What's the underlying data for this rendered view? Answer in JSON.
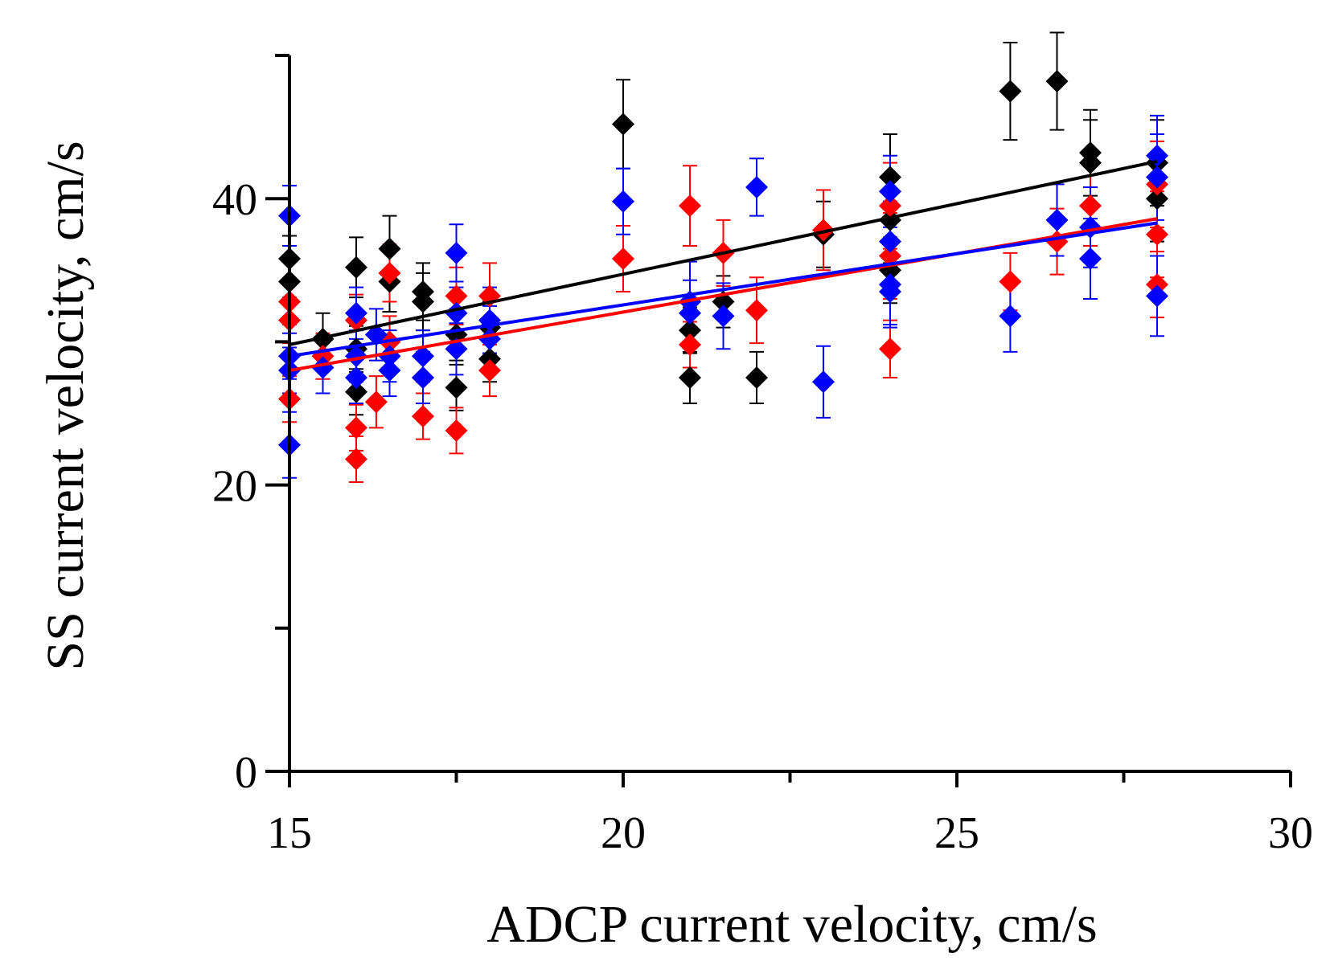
{
  "chart_data": {
    "type": "scatter",
    "xlabel": "ADCP current velocity, cm/s",
    "ylabel": "SS current velocity, cm/s",
    "xlim": [
      15,
      30
    ],
    "ylim": [
      0,
      50
    ],
    "x_ticks": [
      15,
      20,
      25,
      30
    ],
    "x_minor_ticks": [
      17.5,
      22.5,
      27.5
    ],
    "y_ticks": [
      0,
      20,
      40
    ],
    "y_minor_ticks": [
      10,
      30,
      50
    ],
    "marker": "diamond",
    "grid": false,
    "series": [
      {
        "color": "#000000",
        "fit": [
          [
            15,
            29.8
          ],
          [
            28,
            42.6
          ]
        ],
        "points": [
          [
            15,
            35.8,
            1.6
          ],
          [
            15,
            34.2,
            1.6
          ],
          [
            15.5,
            30.2,
            1.8
          ],
          [
            16,
            35.2,
            2.1
          ],
          [
            16,
            29.5,
            1.6
          ],
          [
            16,
            26.5,
            1.6
          ],
          [
            16.5,
            36.5,
            2.3
          ],
          [
            16.5,
            34.2,
            2.1
          ],
          [
            17,
            33.5,
            2.0
          ],
          [
            17,
            32.8,
            2.0
          ],
          [
            17.5,
            26.8,
            1.6
          ],
          [
            17.5,
            30.5,
            1.8
          ],
          [
            18,
            28.8,
            1.6
          ],
          [
            18,
            31.0,
            1.8
          ],
          [
            20,
            45.2,
            3.1
          ],
          [
            21,
            30.8,
            1.6
          ],
          [
            21,
            27.5,
            1.8
          ],
          [
            21.5,
            32.8,
            1.8
          ],
          [
            22,
            27.5,
            1.8
          ],
          [
            23,
            37.5,
            2.3
          ],
          [
            24,
            41.5,
            3.0
          ],
          [
            24,
            38.5,
            3.0
          ],
          [
            24,
            35.0,
            2.3
          ],
          [
            25.8,
            47.5,
            3.4
          ],
          [
            26.5,
            48.2,
            3.4
          ],
          [
            27,
            43.2,
            3.0
          ],
          [
            27,
            42.5,
            3.0
          ],
          [
            28,
            42.5,
            3.0
          ],
          [
            28,
            40.0,
            3.0
          ]
        ]
      },
      {
        "color": "#ff0000",
        "fit": [
          [
            15,
            28.0
          ],
          [
            28,
            38.6
          ]
        ],
        "points": [
          [
            15,
            32.8,
            1.6
          ],
          [
            15,
            31.5,
            1.6
          ],
          [
            15,
            26.0,
            1.6
          ],
          [
            15.5,
            29.0,
            1.6
          ],
          [
            16,
            31.5,
            1.8
          ],
          [
            16,
            24.0,
            1.6
          ],
          [
            16,
            21.8,
            1.6
          ],
          [
            16.3,
            25.8,
            1.8
          ],
          [
            16.5,
            34.8,
            2.0
          ],
          [
            16.5,
            30.0,
            1.8
          ],
          [
            17,
            27.5,
            1.8
          ],
          [
            17,
            24.8,
            1.6
          ],
          [
            17.5,
            33.2,
            2.0
          ],
          [
            17.5,
            23.8,
            1.6
          ],
          [
            18,
            33.2,
            2.3
          ],
          [
            18,
            28.0,
            1.8
          ],
          [
            20,
            35.8,
            2.3
          ],
          [
            21,
            39.5,
            2.8
          ],
          [
            21,
            29.8,
            1.6
          ],
          [
            21.5,
            36.2,
            2.3
          ],
          [
            22,
            32.2,
            2.3
          ],
          [
            23,
            37.8,
            2.8
          ],
          [
            24,
            39.5,
            3.0
          ],
          [
            24,
            36.0,
            3.0
          ],
          [
            24,
            29.5,
            2.0
          ],
          [
            25.8,
            34.2,
            2.0
          ],
          [
            26.5,
            37.0,
            2.3
          ],
          [
            27,
            39.5,
            2.8
          ],
          [
            28,
            41.0,
            3.0
          ],
          [
            28,
            37.5,
            3.0
          ],
          [
            28,
            34.0,
            2.3
          ]
        ]
      },
      {
        "color": "#0000ff",
        "fit": [
          [
            15,
            29.0
          ],
          [
            28,
            38.3
          ]
        ],
        "points": [
          [
            15,
            38.8,
            2.1
          ],
          [
            15,
            29.0,
            1.6
          ],
          [
            15,
            28.0,
            1.6
          ],
          [
            15,
            22.8,
            2.3
          ],
          [
            15.5,
            28.2,
            1.8
          ],
          [
            16,
            32.0,
            1.8
          ],
          [
            16,
            29.0,
            1.8
          ],
          [
            16,
            27.5,
            1.8
          ],
          [
            16.3,
            30.5,
            1.8
          ],
          [
            16.5,
            29.0,
            1.8
          ],
          [
            16.5,
            28.0,
            1.8
          ],
          [
            17,
            29.0,
            1.8
          ],
          [
            17,
            27.5,
            1.8
          ],
          [
            17.5,
            36.2,
            2.0
          ],
          [
            17.5,
            32.0,
            1.8
          ],
          [
            17.5,
            29.5,
            1.8
          ],
          [
            18,
            31.5,
            2.3
          ],
          [
            18,
            30.2,
            2.3
          ],
          [
            20,
            39.8,
            2.3
          ],
          [
            21,
            32.8,
            2.8
          ],
          [
            21,
            32.0,
            2.3
          ],
          [
            21.5,
            31.8,
            2.3
          ],
          [
            22,
            40.8,
            2.0
          ],
          [
            23,
            27.2,
            2.5
          ],
          [
            24,
            40.5,
            2.5
          ],
          [
            24,
            37.0,
            2.8
          ],
          [
            24,
            34.0,
            2.8
          ],
          [
            24,
            33.5,
            2.5
          ],
          [
            25.8,
            31.8,
            2.5
          ],
          [
            26.5,
            38.5,
            2.5
          ],
          [
            27,
            38.0,
            2.8
          ],
          [
            27,
            35.8,
            2.8
          ],
          [
            28,
            43.0,
            2.8
          ],
          [
            28,
            41.5,
            3.0
          ],
          [
            28,
            33.2,
            2.8
          ]
        ]
      }
    ]
  }
}
